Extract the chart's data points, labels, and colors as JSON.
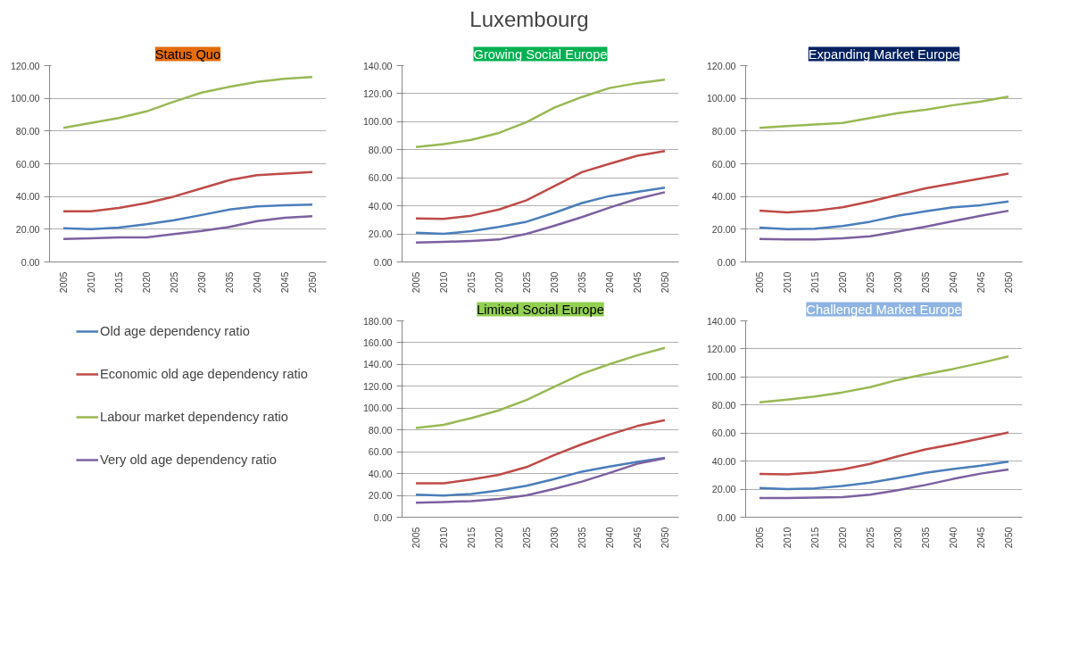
{
  "chart_data": [
    {
      "type": "other",
      "title": "Luxembourg"
    },
    {
      "type": "line",
      "title": "Status Quo",
      "categories": [
        "2005",
        "2010",
        "2015",
        "2020",
        "2025",
        "2030",
        "2035",
        "2040",
        "2045",
        "2050"
      ],
      "ylim": [
        0,
        120
      ],
      "yticks": [
        {
          "value": 0,
          "label": "0.00"
        },
        {
          "value": 20,
          "label": "20.00"
        },
        {
          "value": 40,
          "label": "40.00"
        },
        {
          "value": 60,
          "label": "60.00"
        },
        {
          "value": 80,
          "label": "80.00"
        },
        {
          "value": 100,
          "label": "100.00"
        },
        {
          "value": 120,
          "label": "120.00"
        }
      ],
      "grid": "y",
      "legend": "bottom",
      "series": [
        {
          "name": "Old age dependency ratio",
          "color": "#4a7ebb",
          "values": [
            20.6,
            20,
            21,
            23,
            25.5,
            28.7,
            32,
            34,
            34.7,
            35
          ]
        },
        {
          "name": "Economic old age dependency ratio",
          "color": "#be4b48",
          "values": [
            31,
            31,
            33,
            36,
            40,
            45,
            50,
            53,
            54,
            55
          ]
        },
        {
          "name": "Labour market dependency ratio",
          "color": "#98b954",
          "values": [
            82,
            85,
            88,
            92,
            98,
            103.5,
            107,
            110,
            112,
            113
          ]
        },
        {
          "name": "Very old age dependency ratio",
          "color": "#7d60a0",
          "values": [
            14,
            14.5,
            15,
            15,
            17,
            19,
            21.4,
            25,
            27,
            28
          ]
        }
      ]
    },
    {
      "type": "line",
      "title": "Growing Social Europe",
      "categories": [
        "2005",
        "2010",
        "2015",
        "2020",
        "2025",
        "2030",
        "2035",
        "2040",
        "2045",
        "2050"
      ],
      "ylim": [
        0,
        140
      ],
      "yticks": [
        {
          "value": 0,
          "label": "0.00"
        },
        {
          "value": 20,
          "label": "20.00"
        },
        {
          "value": 40,
          "label": "40.00"
        },
        {
          "value": 60,
          "label": "60.00"
        },
        {
          "value": 80,
          "label": "80.00"
        },
        {
          "value": 100,
          "label": "100.00"
        },
        {
          "value": 120,
          "label": "120.00"
        },
        {
          "value": 140,
          "label": "140.00"
        }
      ],
      "grid": "y",
      "series": [
        {
          "color": "#4a7ebb",
          "values": [
            20.8,
            20,
            22,
            25,
            28.7,
            35,
            42,
            47,
            50,
            53
          ]
        },
        {
          "color": "#be4b48",
          "values": [
            31,
            30.7,
            33,
            37.4,
            44,
            54,
            64,
            70,
            75.7,
            79
          ]
        },
        {
          "color": "#98b954",
          "values": [
            82,
            84,
            87,
            92,
            99.7,
            110,
            117.6,
            124,
            127.5,
            130
          ]
        },
        {
          "color": "#7d60a0",
          "values": [
            13.9,
            14.3,
            15,
            16,
            20,
            25.8,
            32,
            38.7,
            45,
            49.7
          ]
        }
      ]
    },
    {
      "type": "line",
      "title": "Limited Social Europe",
      "categories": [
        "2005",
        "2010",
        "2015",
        "2020",
        "2025",
        "2030",
        "2035",
        "2040",
        "2045",
        "2050"
      ],
      "ylim": [
        0,
        180
      ],
      "yticks": [
        {
          "value": 0,
          "label": "0.00"
        },
        {
          "value": 20,
          "label": "20.00"
        },
        {
          "value": 40,
          "label": "40.00"
        },
        {
          "value": 60,
          "label": "60.00"
        },
        {
          "value": 80,
          "label": "80.00"
        },
        {
          "value": 100,
          "label": "100.00"
        },
        {
          "value": 120,
          "label": "120.00"
        },
        {
          "value": 140,
          "label": "140.00"
        },
        {
          "value": 160,
          "label": "160.00"
        },
        {
          "value": 180,
          "label": "180.00"
        }
      ],
      "grid": "y",
      "series": [
        {
          "color": "#4a7ebb",
          "values": [
            20.7,
            19.9,
            21.3,
            24.5,
            28.8,
            35,
            41.8,
            46.4,
            50.7,
            54.5
          ]
        },
        {
          "color": "#be4b48",
          "values": [
            31,
            31,
            34.6,
            38.9,
            46,
            57,
            66.9,
            75.8,
            83.6,
            89
          ]
        },
        {
          "color": "#98b954",
          "values": [
            81.8,
            84.7,
            90.8,
            98,
            107.5,
            119.6,
            131.4,
            140.3,
            148.4,
            155.3
          ]
        },
        {
          "color": "#7d60a0",
          "values": [
            13.3,
            14,
            14.7,
            16.7,
            20,
            26,
            32.6,
            40.6,
            49,
            54
          ]
        }
      ]
    },
    {
      "type": "line",
      "title": "Expanding Market Europe",
      "categories": [
        "2005",
        "2010",
        "2015",
        "2020",
        "2025",
        "2030",
        "2035",
        "2040",
        "2045",
        "2050"
      ],
      "ylim": [
        0,
        120
      ],
      "yticks": [
        {
          "value": 0,
          "label": "0.00"
        },
        {
          "value": 20,
          "label": "20.00"
        },
        {
          "value": 40,
          "label": "40.00"
        },
        {
          "value": 60,
          "label": "60.00"
        },
        {
          "value": 80,
          "label": "80.00"
        },
        {
          "value": 100,
          "label": "100.00"
        },
        {
          "value": 120,
          "label": "120.00"
        }
      ],
      "grid": "y",
      "series": [
        {
          "color": "#4a7ebb",
          "values": [
            21,
            20,
            20.3,
            21.9,
            24.6,
            28.2,
            31,
            33.4,
            34.7,
            37
          ]
        },
        {
          "color": "#be4b48",
          "values": [
            31.3,
            30.3,
            31.3,
            33.4,
            37,
            41,
            45,
            48,
            51,
            54
          ]
        },
        {
          "color": "#98b954",
          "values": [
            82,
            83,
            84,
            85,
            88,
            91,
            93,
            95.8,
            98,
            101
          ]
        },
        {
          "color": "#7d60a0",
          "values": [
            14,
            13.8,
            13.8,
            14.4,
            15.7,
            18.6,
            21.5,
            25,
            28.2,
            31.3
          ]
        }
      ]
    },
    {
      "type": "line",
      "title": "Challenged Market Europe",
      "categories": [
        "2005",
        "2010",
        "2015",
        "2020",
        "2025",
        "2030",
        "2035",
        "2040",
        "2045",
        "2050"
      ],
      "ylim": [
        0,
        140
      ],
      "yticks": [
        {
          "value": 0,
          "label": "0.00"
        },
        {
          "value": 20,
          "label": "20.00"
        },
        {
          "value": 40,
          "label": "40.00"
        },
        {
          "value": 60,
          "label": "60.00"
        },
        {
          "value": 80,
          "label": "80.00"
        },
        {
          "value": 100,
          "label": "100.00"
        },
        {
          "value": 120,
          "label": "120.00"
        },
        {
          "value": 140,
          "label": "140.00"
        }
      ],
      "grid": "y",
      "series": [
        {
          "color": "#4a7ebb",
          "values": [
            20.8,
            20,
            20.6,
            22.2,
            24.6,
            28,
            31.6,
            34.3,
            36.7,
            39.6
          ]
        },
        {
          "color": "#be4b48",
          "values": [
            30.9,
            30.5,
            31.8,
            34,
            38,
            43.4,
            48.4,
            52,
            56.2,
            60.5
          ]
        },
        {
          "color": "#98b954",
          "values": [
            82,
            83.8,
            86,
            89,
            92.7,
            97.9,
            102,
            105.7,
            110,
            114.7
          ]
        },
        {
          "color": "#7d60a0",
          "values": [
            13.7,
            13.7,
            14,
            14.3,
            16,
            19.3,
            23,
            27.3,
            31.1,
            34
          ]
        }
      ]
    }
  ]
}
